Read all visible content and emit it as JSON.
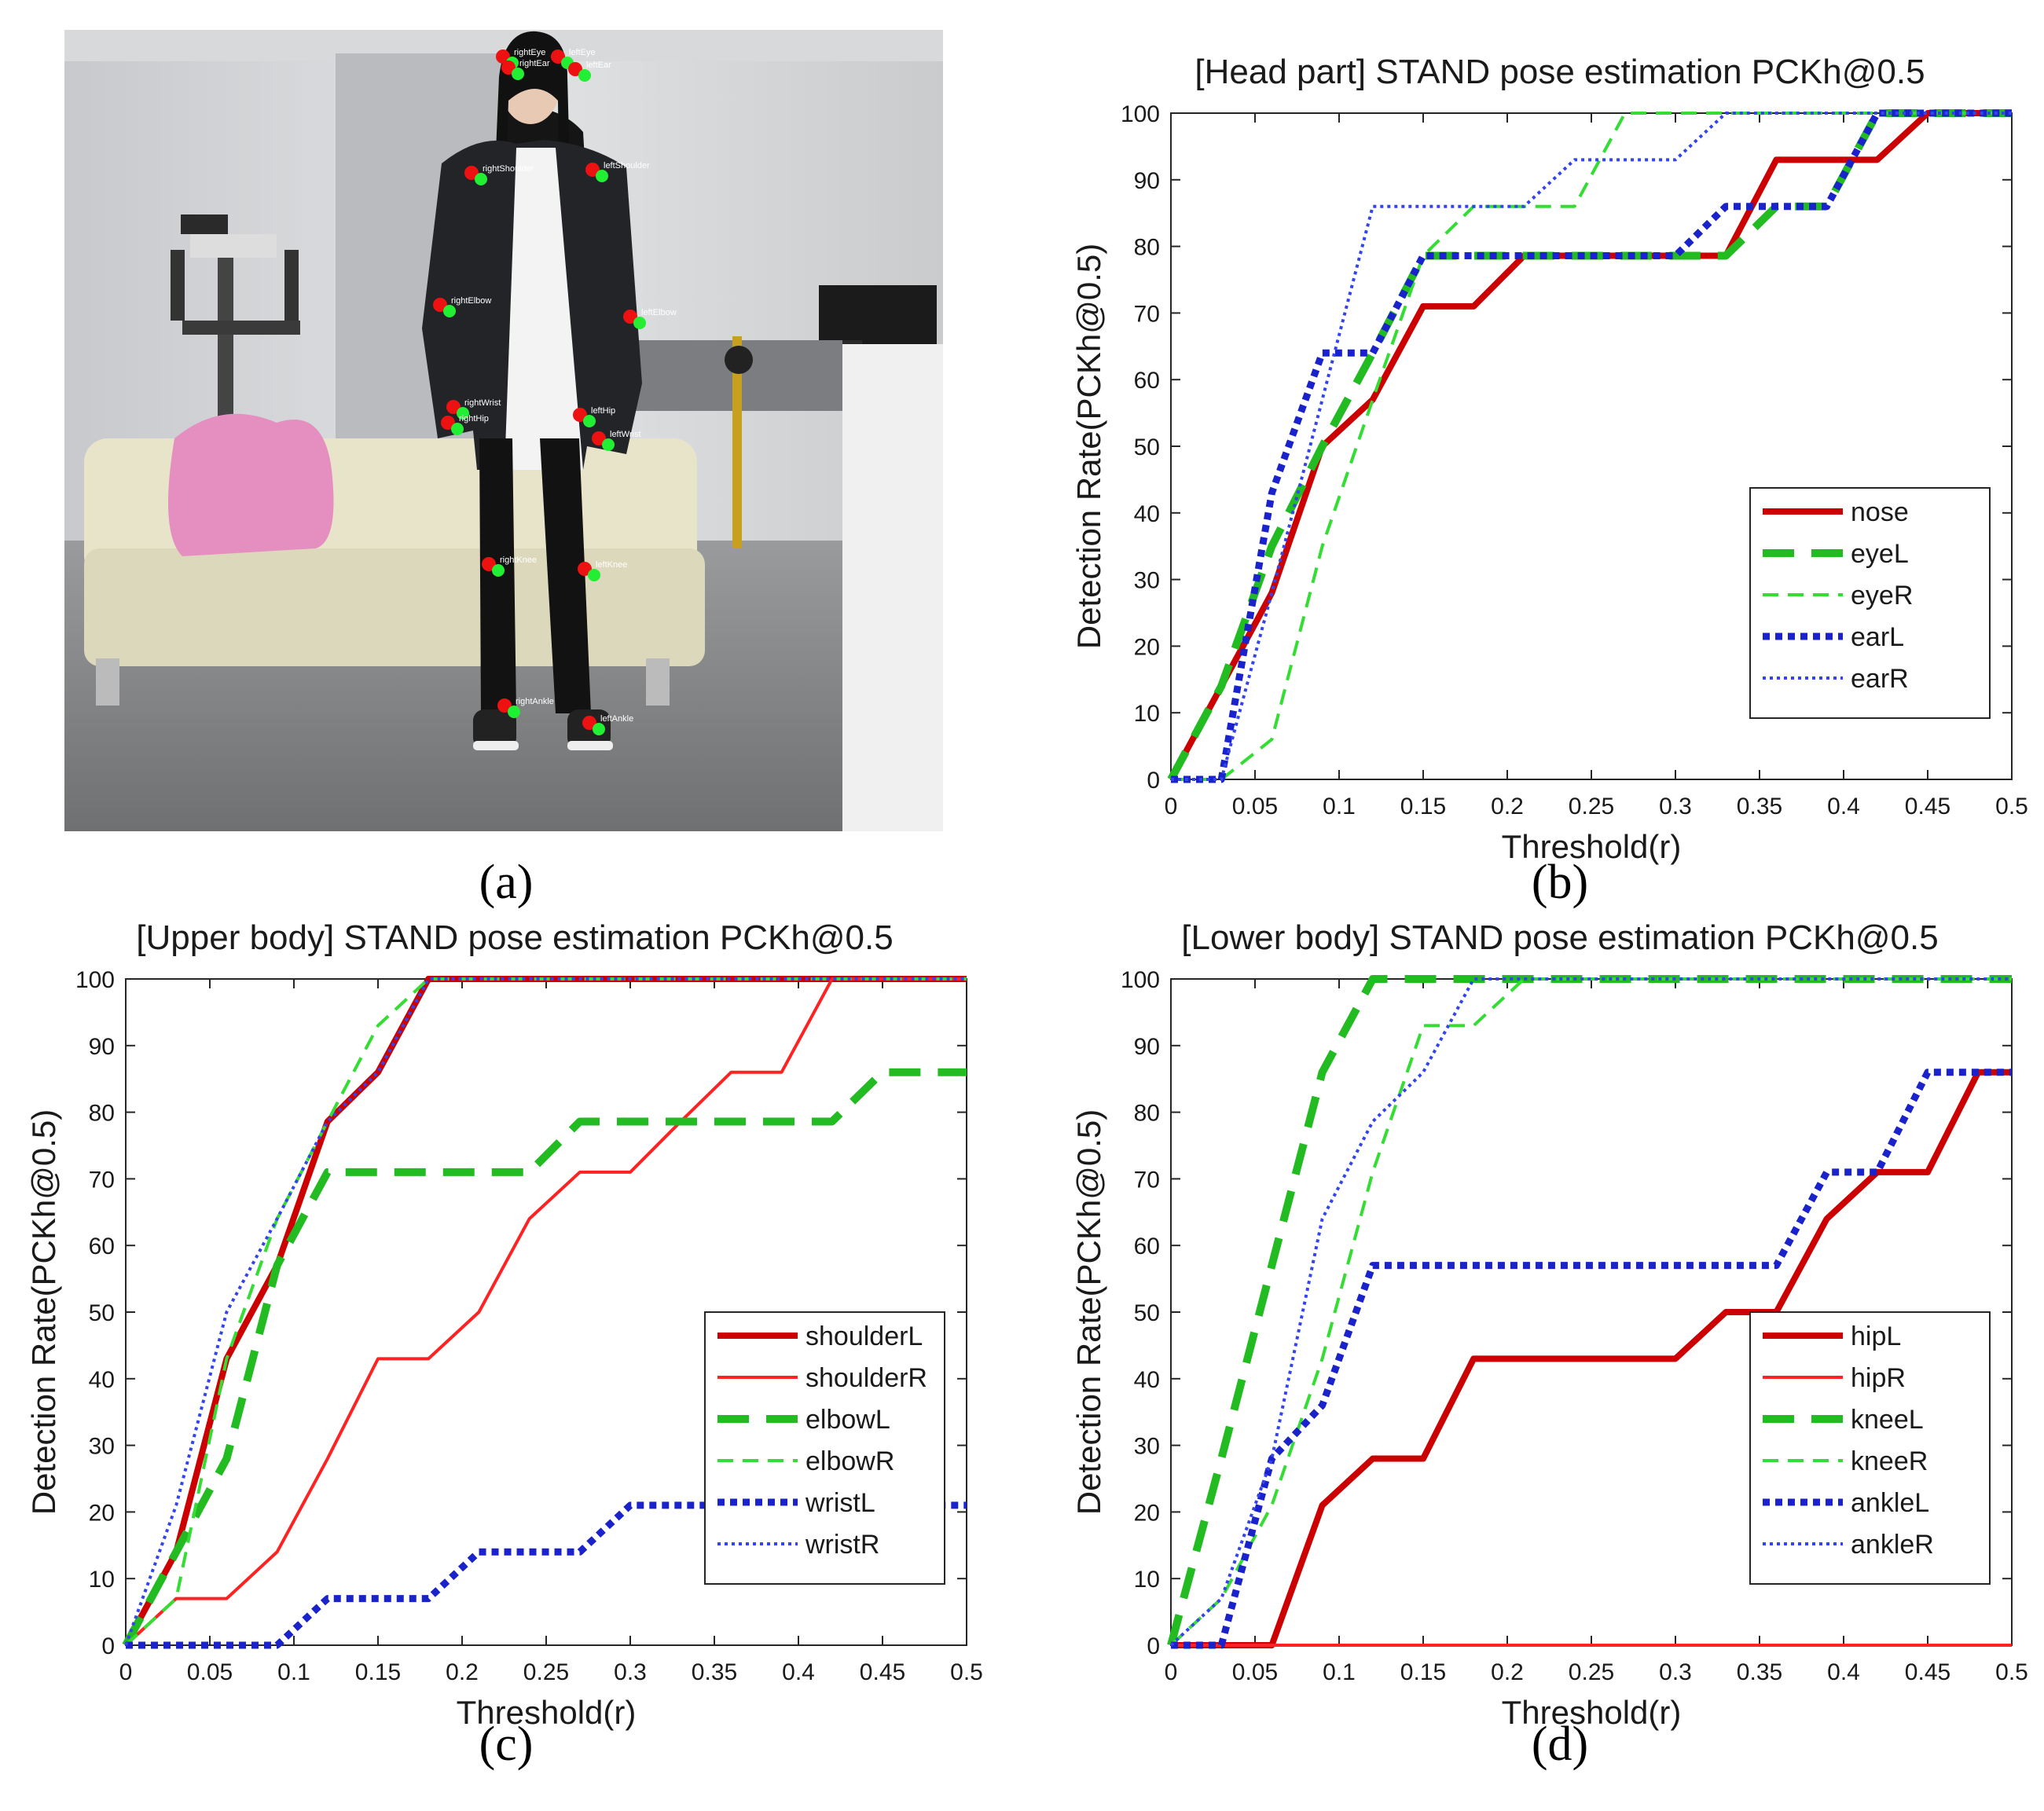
{
  "photo": {
    "keypoint_labels": [
      "rightEye",
      "leftEye",
      "rightEar",
      "leftEar",
      "rightShoulder",
      "leftShoulder",
      "rightElbow",
      "leftElbow",
      "rightWrist",
      "leftWrist",
      "rightHip",
      "leftHip",
      "rightKnee",
      "leftKnee",
      "rightAnkle",
      "leftAnkle"
    ]
  },
  "captions": {
    "a": "(a)",
    "b": "(b)",
    "c": "(c)",
    "d": "(d)"
  },
  "chart_data": [
    {
      "id": "b",
      "type": "line",
      "title": "[Head part] STAND pose estimation PCKh@0.5",
      "xlabel": "Threshold(r)",
      "ylabel": "Detection Rate(PCKh@0.5)",
      "xlim": [
        0,
        0.5
      ],
      "ylim": [
        0,
        100
      ],
      "xticks": [
        "0",
        "0.05",
        "0.1",
        "0.15",
        "0.2",
        "0.25",
        "0.3",
        "0.35",
        "0.4",
        "0.45",
        "0.5"
      ],
      "yticks": [
        "0",
        "10",
        "20",
        "30",
        "40",
        "50",
        "60",
        "70",
        "80",
        "90",
        "100"
      ],
      "legend_position": "lower-right",
      "series": [
        {
          "name": "nose",
          "color": "#cc0000",
          "style": "solid-thick",
          "x": [
            0,
            0.03,
            0.06,
            0.09,
            0.12,
            0.15,
            0.18,
            0.21,
            0.24,
            0.27,
            0.3,
            0.33,
            0.36,
            0.39,
            0.42,
            0.45,
            0.5
          ],
          "y": [
            0,
            14,
            28,
            50,
            57,
            71,
            71,
            78.6,
            78.6,
            78.6,
            78.6,
            78.6,
            93,
            93,
            93,
            100,
            100
          ]
        },
        {
          "name": "eyeL",
          "color": "#22bb22",
          "style": "dash-thick",
          "x": [
            0,
            0.03,
            0.06,
            0.09,
            0.12,
            0.15,
            0.18,
            0.21,
            0.24,
            0.27,
            0.3,
            0.33,
            0.36,
            0.39,
            0.42,
            0.45,
            0.5
          ],
          "y": [
            0,
            14,
            35,
            50,
            64,
            78.6,
            78.6,
            78.6,
            78.6,
            78.6,
            78.6,
            78.6,
            86,
            86,
            100,
            100,
            100
          ]
        },
        {
          "name": "eyeR",
          "color": "#33dd33",
          "style": "dash-thin",
          "x": [
            0,
            0.03,
            0.06,
            0.09,
            0.12,
            0.15,
            0.18,
            0.21,
            0.24,
            0.27,
            0.3,
            0.33,
            0.5
          ],
          "y": [
            0,
            0,
            6,
            35,
            57,
            78.6,
            86,
            86,
            86,
            100,
            100,
            100,
            100
          ]
        },
        {
          "name": "earL",
          "color": "#1a22cc",
          "style": "dot-thick",
          "x": [
            0,
            0.03,
            0.06,
            0.09,
            0.12,
            0.15,
            0.18,
            0.21,
            0.24,
            0.27,
            0.3,
            0.33,
            0.36,
            0.39,
            0.42,
            0.45,
            0.5
          ],
          "y": [
            0,
            0,
            43,
            64,
            64,
            78.6,
            78.6,
            78.6,
            78.6,
            78.6,
            78.6,
            86,
            86,
            86,
            100,
            100,
            100
          ]
        },
        {
          "name": "earR",
          "color": "#3344ee",
          "style": "dot-thin",
          "x": [
            0,
            0.03,
            0.06,
            0.09,
            0.12,
            0.15,
            0.18,
            0.21,
            0.24,
            0.27,
            0.3,
            0.33,
            0.5
          ],
          "y": [
            0,
            0,
            28,
            57,
            86,
            86,
            86,
            86,
            93,
            93,
            93,
            100,
            100
          ]
        }
      ]
    },
    {
      "id": "c",
      "type": "line",
      "title": "[Upper body] STAND pose estimation PCKh@0.5",
      "xlabel": "Threshold(r)",
      "ylabel": "Detection Rate(PCKh@0.5)",
      "xlim": [
        0,
        0.5
      ],
      "ylim": [
        0,
        100
      ],
      "xticks": [
        "0",
        "0.05",
        "0.1",
        "0.15",
        "0.2",
        "0.25",
        "0.3",
        "0.35",
        "0.4",
        "0.45",
        "0.5"
      ],
      "yticks": [
        "0",
        "10",
        "20",
        "30",
        "40",
        "50",
        "60",
        "70",
        "80",
        "90",
        "100"
      ],
      "legend_position": "lower-right",
      "series": [
        {
          "name": "shoulderL",
          "color": "#cc0000",
          "style": "solid-thick",
          "x": [
            0,
            0.03,
            0.06,
            0.09,
            0.12,
            0.15,
            0.18,
            0.5
          ],
          "y": [
            0,
            14,
            43,
            57,
            78.6,
            86,
            100,
            100
          ]
        },
        {
          "name": "shoulderR",
          "color": "#ff2222",
          "style": "solid-thin",
          "x": [
            0,
            0.03,
            0.06,
            0.09,
            0.12,
            0.15,
            0.18,
            0.21,
            0.24,
            0.27,
            0.3,
            0.33,
            0.36,
            0.39,
            0.42,
            0.5
          ],
          "y": [
            0,
            7,
            7,
            14,
            28,
            43,
            43,
            50,
            64,
            71,
            71,
            78.6,
            86,
            86,
            100,
            100
          ]
        },
        {
          "name": "elbowL",
          "color": "#22bb22",
          "style": "dash-thick",
          "x": [
            0,
            0.03,
            0.06,
            0.09,
            0.12,
            0.15,
            0.18,
            0.21,
            0.24,
            0.27,
            0.3,
            0.33,
            0.36,
            0.39,
            0.42,
            0.45,
            0.5
          ],
          "y": [
            0,
            14,
            28,
            57,
            71,
            71,
            71,
            71,
            71,
            78.6,
            78.6,
            78.6,
            78.6,
            78.6,
            78.6,
            86,
            86
          ]
        },
        {
          "name": "elbowR",
          "color": "#33dd33",
          "style": "dash-thin",
          "x": [
            0,
            0.03,
            0.06,
            0.09,
            0.12,
            0.15,
            0.18,
            0.5
          ],
          "y": [
            0,
            7,
            43,
            64,
            78.6,
            93,
            100,
            100
          ]
        },
        {
          "name": "wristL",
          "color": "#1a22cc",
          "style": "dot-thick",
          "x": [
            0,
            0.03,
            0.06,
            0.09,
            0.12,
            0.15,
            0.18,
            0.21,
            0.24,
            0.27,
            0.3,
            0.33,
            0.5
          ],
          "y": [
            0,
            0,
            0,
            0,
            7,
            7,
            7,
            14,
            14,
            14,
            21,
            21,
            21
          ]
        },
        {
          "name": "wristR",
          "color": "#3344ee",
          "style": "dot-thin",
          "x": [
            0,
            0.03,
            0.06,
            0.09,
            0.12,
            0.15,
            0.18,
            0.5
          ],
          "y": [
            0,
            21,
            50,
            64,
            78.6,
            86,
            100,
            100
          ]
        }
      ]
    },
    {
      "id": "d",
      "type": "line",
      "title": "[Lower body] STAND pose estimation PCKh@0.5",
      "xlabel": "Threshold(r)",
      "ylabel": "Detection Rate(PCKh@0.5)",
      "xlim": [
        0,
        0.5
      ],
      "ylim": [
        0,
        100
      ],
      "xticks": [
        "0",
        "0.05",
        "0.1",
        "0.15",
        "0.2",
        "0.25",
        "0.3",
        "0.35",
        "0.4",
        "0.45",
        "0.5"
      ],
      "yticks": [
        "0",
        "10",
        "20",
        "30",
        "40",
        "50",
        "60",
        "70",
        "80",
        "90",
        "100"
      ],
      "legend_position": "lower-right",
      "series": [
        {
          "name": "hipL",
          "color": "#cc0000",
          "style": "solid-thick",
          "x": [
            0,
            0.03,
            0.06,
            0.09,
            0.12,
            0.15,
            0.18,
            0.21,
            0.24,
            0.27,
            0.3,
            0.33,
            0.36,
            0.39,
            0.42,
            0.45,
            0.48,
            0.5
          ],
          "y": [
            0,
            0,
            0,
            21,
            28,
            28,
            43,
            43,
            43,
            43,
            43,
            50,
            50,
            64,
            71,
            71,
            86,
            86
          ]
        },
        {
          "name": "hipR",
          "color": "#ff2222",
          "style": "solid-thin",
          "x": [
            0,
            0.5
          ],
          "y": [
            0,
            0
          ]
        },
        {
          "name": "kneeL",
          "color": "#22bb22",
          "style": "dash-thick",
          "x": [
            0,
            0.03,
            0.06,
            0.09,
            0.12,
            0.15,
            0.5
          ],
          "y": [
            0,
            28,
            57,
            86,
            100,
            100,
            100
          ]
        },
        {
          "name": "kneeR",
          "color": "#33dd33",
          "style": "dash-thin",
          "x": [
            0,
            0.03,
            0.06,
            0.09,
            0.12,
            0.15,
            0.18,
            0.21,
            0.5
          ],
          "y": [
            0,
            7,
            21,
            43,
            71,
            93,
            93,
            100,
            100
          ]
        },
        {
          "name": "ankleL",
          "color": "#1a22cc",
          "style": "dot-thick",
          "x": [
            0,
            0.03,
            0.06,
            0.09,
            0.12,
            0.15,
            0.18,
            0.21,
            0.24,
            0.27,
            0.3,
            0.33,
            0.36,
            0.39,
            0.42,
            0.45,
            0.5
          ],
          "y": [
            0,
            0,
            28,
            36,
            57,
            57,
            57,
            57,
            57,
            57,
            57,
            57,
            57,
            71,
            71,
            86,
            86
          ]
        },
        {
          "name": "ankleR",
          "color": "#3344ee",
          "style": "dot-thin",
          "x": [
            0,
            0.03,
            0.06,
            0.09,
            0.12,
            0.15,
            0.18,
            0.5
          ],
          "y": [
            0,
            7,
            28,
            64,
            78.6,
            86,
            100,
            100
          ]
        }
      ]
    }
  ]
}
